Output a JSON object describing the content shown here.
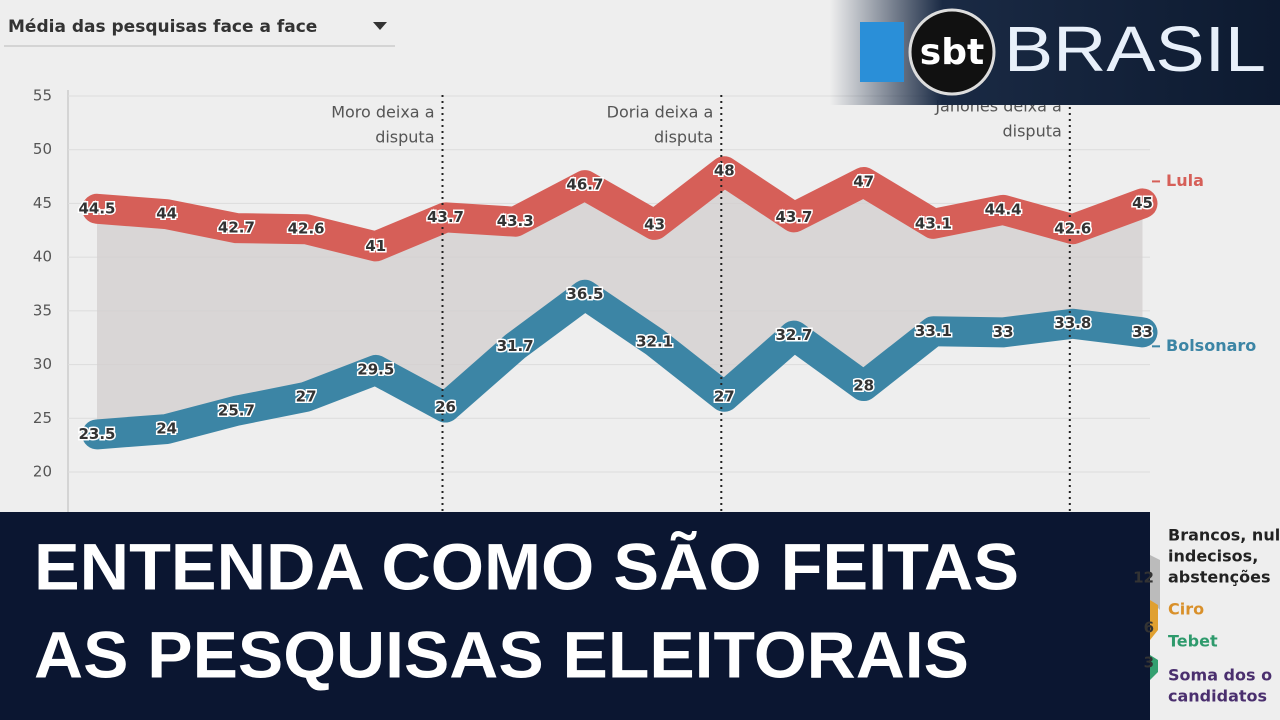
{
  "header": {
    "dropdown": "Média das pesquisas face a face"
  },
  "logo": {
    "mark": "sbt",
    "name": "BRASIL"
  },
  "headline": [
    "ENTENDA COMO SÃO FEITAS",
    "AS PESQUISAS ELEITORAIS"
  ],
  "chart_data": {
    "type": "line",
    "categories": [
      null,
      null,
      null,
      null,
      null,
      null,
      null,
      null,
      null,
      null,
      null,
      null,
      null,
      null,
      null,
      null
    ],
    "series": [
      {
        "name": "Lula",
        "color": "#d65f58",
        "values": [
          44.5,
          44,
          42.7,
          42.6,
          41,
          43.7,
          43.3,
          46.7,
          43,
          48,
          43.7,
          47,
          43.1,
          44.4,
          42.6,
          45
        ]
      },
      {
        "name": "Bolsonaro",
        "color": "#3c85a5",
        "values": [
          23.5,
          24,
          25.7,
          27,
          29.5,
          26,
          31.7,
          36.5,
          32.1,
          27,
          32.7,
          28,
          33.1,
          33,
          33.8,
          33
        ]
      }
    ],
    "ylim": [
      20,
      55
    ],
    "yticks": [
      20,
      25,
      30,
      35,
      40,
      45,
      50,
      55
    ],
    "grid": true,
    "annotations": [
      [
        "Moro deixa a",
        "disputa"
      ],
      [
        "Doria deixa a",
        "disputa"
      ],
      [
        "Janones deixa a",
        "disputa"
      ]
    ],
    "lower_legend": [
      {
        "lines": [
          "Brancos, nul",
          "indecisos,",
          "abstenções"
        ],
        "value": 12,
        "color": "#222222"
      },
      {
        "lines": [
          "Ciro"
        ],
        "value": 6,
        "color": "#d9902a"
      },
      {
        "lines": [
          "Tebet"
        ],
        "value": 3,
        "color": "#2e9a6c"
      },
      {
        "lines": [
          "Soma dos o",
          "candidatos"
        ],
        "color": "#4a2f6e"
      }
    ]
  }
}
